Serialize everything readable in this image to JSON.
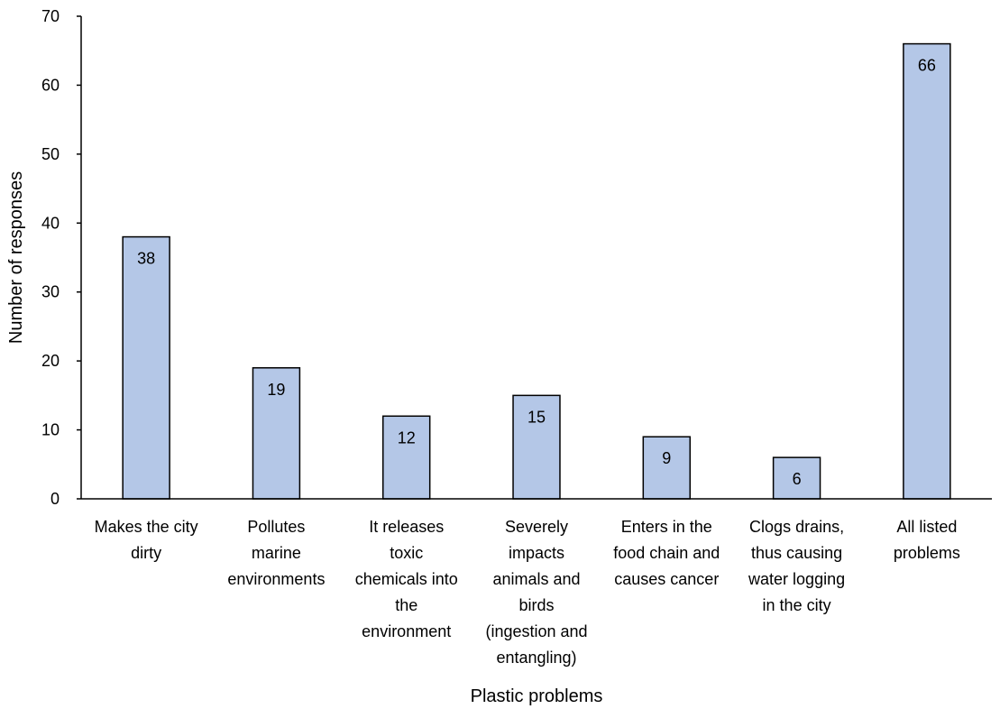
{
  "chart_data": {
    "type": "bar",
    "title": "",
    "xlabel": "Plastic problems",
    "ylabel": "Number of responses",
    "ylim": [
      0,
      70
    ],
    "yticks": [
      0,
      10,
      20,
      30,
      40,
      50,
      60,
      70
    ],
    "grid": false,
    "legend": "none",
    "bar_color": "#b4c7e7",
    "bar_edge_color": "#000000",
    "categories": [
      [
        "Makes the city",
        "dirty"
      ],
      [
        "Pollutes",
        "marine",
        "environments"
      ],
      [
        "It releases",
        "toxic",
        "chemicals into",
        "the",
        "environment"
      ],
      [
        "Severely",
        "impacts",
        "animals and",
        "birds",
        "(ingestion and",
        "entangling)"
      ],
      [
        "Enters in the",
        "food chain and",
        "causes cancer"
      ],
      [
        "Clogs drains,",
        "thus causing",
        "water logging",
        "in the city"
      ],
      [
        "All listed",
        "problems"
      ]
    ],
    "values": [
      38,
      19,
      12,
      15,
      9,
      6,
      66
    ]
  }
}
